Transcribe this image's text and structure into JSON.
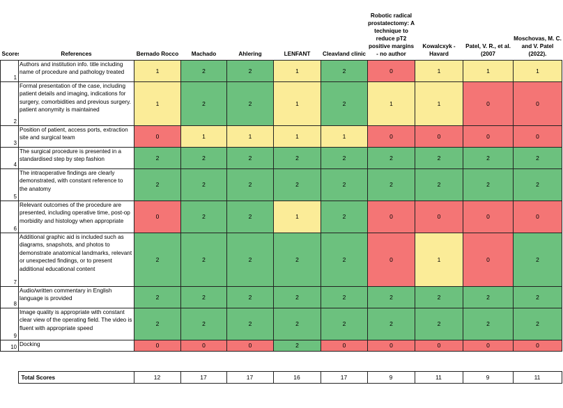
{
  "headers": {
    "scores": "Scores",
    "references": "References",
    "columns": [
      "Bernado Rocco",
      "Machado",
      "Ahlering",
      "LENFANT",
      "Cleavland clinic",
      "Robotic radical prostatectomy: A technique to reduce pT2 positive margins - no author",
      "Kowalcxyk - Havard",
      "Patel, V. R., et al. (2007",
      "Moschovas, M. C. and V. Patel (2022)."
    ]
  },
  "rows": [
    {
      "num": "1",
      "reference": "Authors and institution info. title including name of procedure and pathology treated",
      "scores": [
        "1",
        "2",
        "2",
        "1",
        "2",
        "0",
        "1",
        "1",
        "1"
      ]
    },
    {
      "num": "2",
      "reference": "Formal presentation of the case, including patient details and imaging, indications for surgery, comorbidities and previous surgery. patient anonymity is maintained",
      "scores": [
        "1",
        "2",
        "2",
        "1",
        "2",
        "1",
        "1",
        "0",
        "0"
      ]
    },
    {
      "num": "3",
      "reference": "Position of patient, access ports, extraction site and surgical team",
      "scores": [
        "0",
        "1",
        "1",
        "1",
        "1",
        "0",
        "0",
        "0",
        "0"
      ]
    },
    {
      "num": "4",
      "reference": "The surgical procedure is presented in a standardised step by step fashion",
      "scores": [
        "2",
        "2",
        "2",
        "2",
        "2",
        "2",
        "2",
        "2",
        "2"
      ]
    },
    {
      "num": "5",
      "reference": "The intraoperative findings are clearly demonstrated, with constant reference to the anatomy",
      "scores": [
        "2",
        "2",
        "2",
        "2",
        "2",
        "2",
        "2",
        "2",
        "2"
      ]
    },
    {
      "num": "6",
      "reference": "Relevant outcomes of the procedure are presented, including operative time, post-op morbidity and histology when appropriate",
      "scores": [
        "0",
        "2",
        "2",
        "1",
        "2",
        "0",
        "0",
        "0",
        "0"
      ]
    },
    {
      "num": "7",
      "reference": "Additional graphic aid is included such as diagrams, snapshots, and photos to demonstrate anatomical landmarks, relevant or unexpected findings, or to present additional educational content",
      "scores": [
        "2",
        "2",
        "2",
        "2",
        "2",
        "0",
        "1",
        "0",
        "2"
      ]
    },
    {
      "num": "8",
      "reference": "Audio/written commentary in English language is provided",
      "scores": [
        "2",
        "2",
        "2",
        "2",
        "2",
        "2",
        "2",
        "2",
        "2"
      ]
    },
    {
      "num": "9",
      "reference": "Image quality is appropriate with constant clear view of the operating field. The video is fluent with appropriate speed",
      "scores": [
        "2",
        "2",
        "2",
        "2",
        "2",
        "2",
        "2",
        "2",
        "2"
      ]
    },
    {
      "num": "10",
      "reference": "Docking",
      "scores": [
        "0",
        "0",
        "0",
        "2",
        "0",
        "0",
        "0",
        "0",
        "0"
      ]
    }
  ],
  "totals": {
    "label": "Total Scores",
    "values": [
      "12",
      "17",
      "17",
      "16",
      "17",
      "9",
      "11",
      "9",
      "11"
    ]
  },
  "colors": {
    "score_0": "#f47575",
    "score_1": "#fbec98",
    "score_2": "#6cc17e"
  }
}
